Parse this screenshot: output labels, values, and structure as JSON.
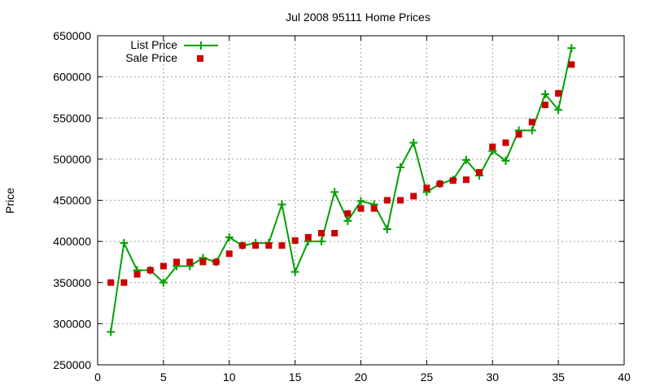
{
  "chart_data": {
    "type": "line",
    "title": "Jul 2008 95111 Home Prices",
    "xlabel": "",
    "ylabel": "Price",
    "xlim": [
      0,
      40
    ],
    "ylim": [
      250000,
      650000
    ],
    "xticks": [
      0,
      5,
      10,
      15,
      20,
      25,
      30,
      35,
      40
    ],
    "yticks": [
      250000,
      300000,
      350000,
      400000,
      450000,
      500000,
      550000,
      600000,
      650000
    ],
    "grid": true,
    "legend_position": "top-left",
    "series": [
      {
        "name": "List Price",
        "style": "line-plus",
        "color": "#00a000",
        "x": [
          1,
          2,
          3,
          4,
          5,
          6,
          7,
          8,
          9,
          10,
          11,
          12,
          13,
          14,
          15,
          16,
          17,
          18,
          19,
          20,
          21,
          22,
          23,
          24,
          25,
          26,
          27,
          28,
          29,
          30,
          31,
          32,
          33,
          34,
          35,
          36
        ],
        "y": [
          290000,
          398000,
          365000,
          365000,
          350000,
          370000,
          370000,
          380000,
          375000,
          405000,
          395000,
          398000,
          398000,
          445000,
          363000,
          400000,
          400000,
          460000,
          425000,
          449000,
          445000,
          415000,
          490000,
          520000,
          460000,
          470000,
          475000,
          499000,
          480000,
          510000,
          498000,
          535000,
          535000,
          579000,
          560000,
          635000
        ]
      },
      {
        "name": "Sale Price",
        "style": "square",
        "color": "#cc0000",
        "x": [
          1,
          2,
          3,
          4,
          5,
          6,
          7,
          8,
          9,
          10,
          11,
          12,
          13,
          14,
          15,
          16,
          17,
          18,
          19,
          20,
          21,
          22,
          23,
          24,
          25,
          26,
          27,
          28,
          29,
          30,
          31,
          32,
          33,
          34,
          35,
          36
        ],
        "y": [
          350000,
          350000,
          360000,
          365000,
          370000,
          375000,
          375000,
          375000,
          375000,
          385000,
          395000,
          395000,
          395000,
          395000,
          401000,
          405000,
          410000,
          410000,
          434000,
          440000,
          440000,
          450000,
          450000,
          455000,
          465000,
          470000,
          474000,
          475000,
          484000,
          515000,
          520000,
          530000,
          545000,
          566000,
          580000,
          615000
        ]
      }
    ]
  }
}
